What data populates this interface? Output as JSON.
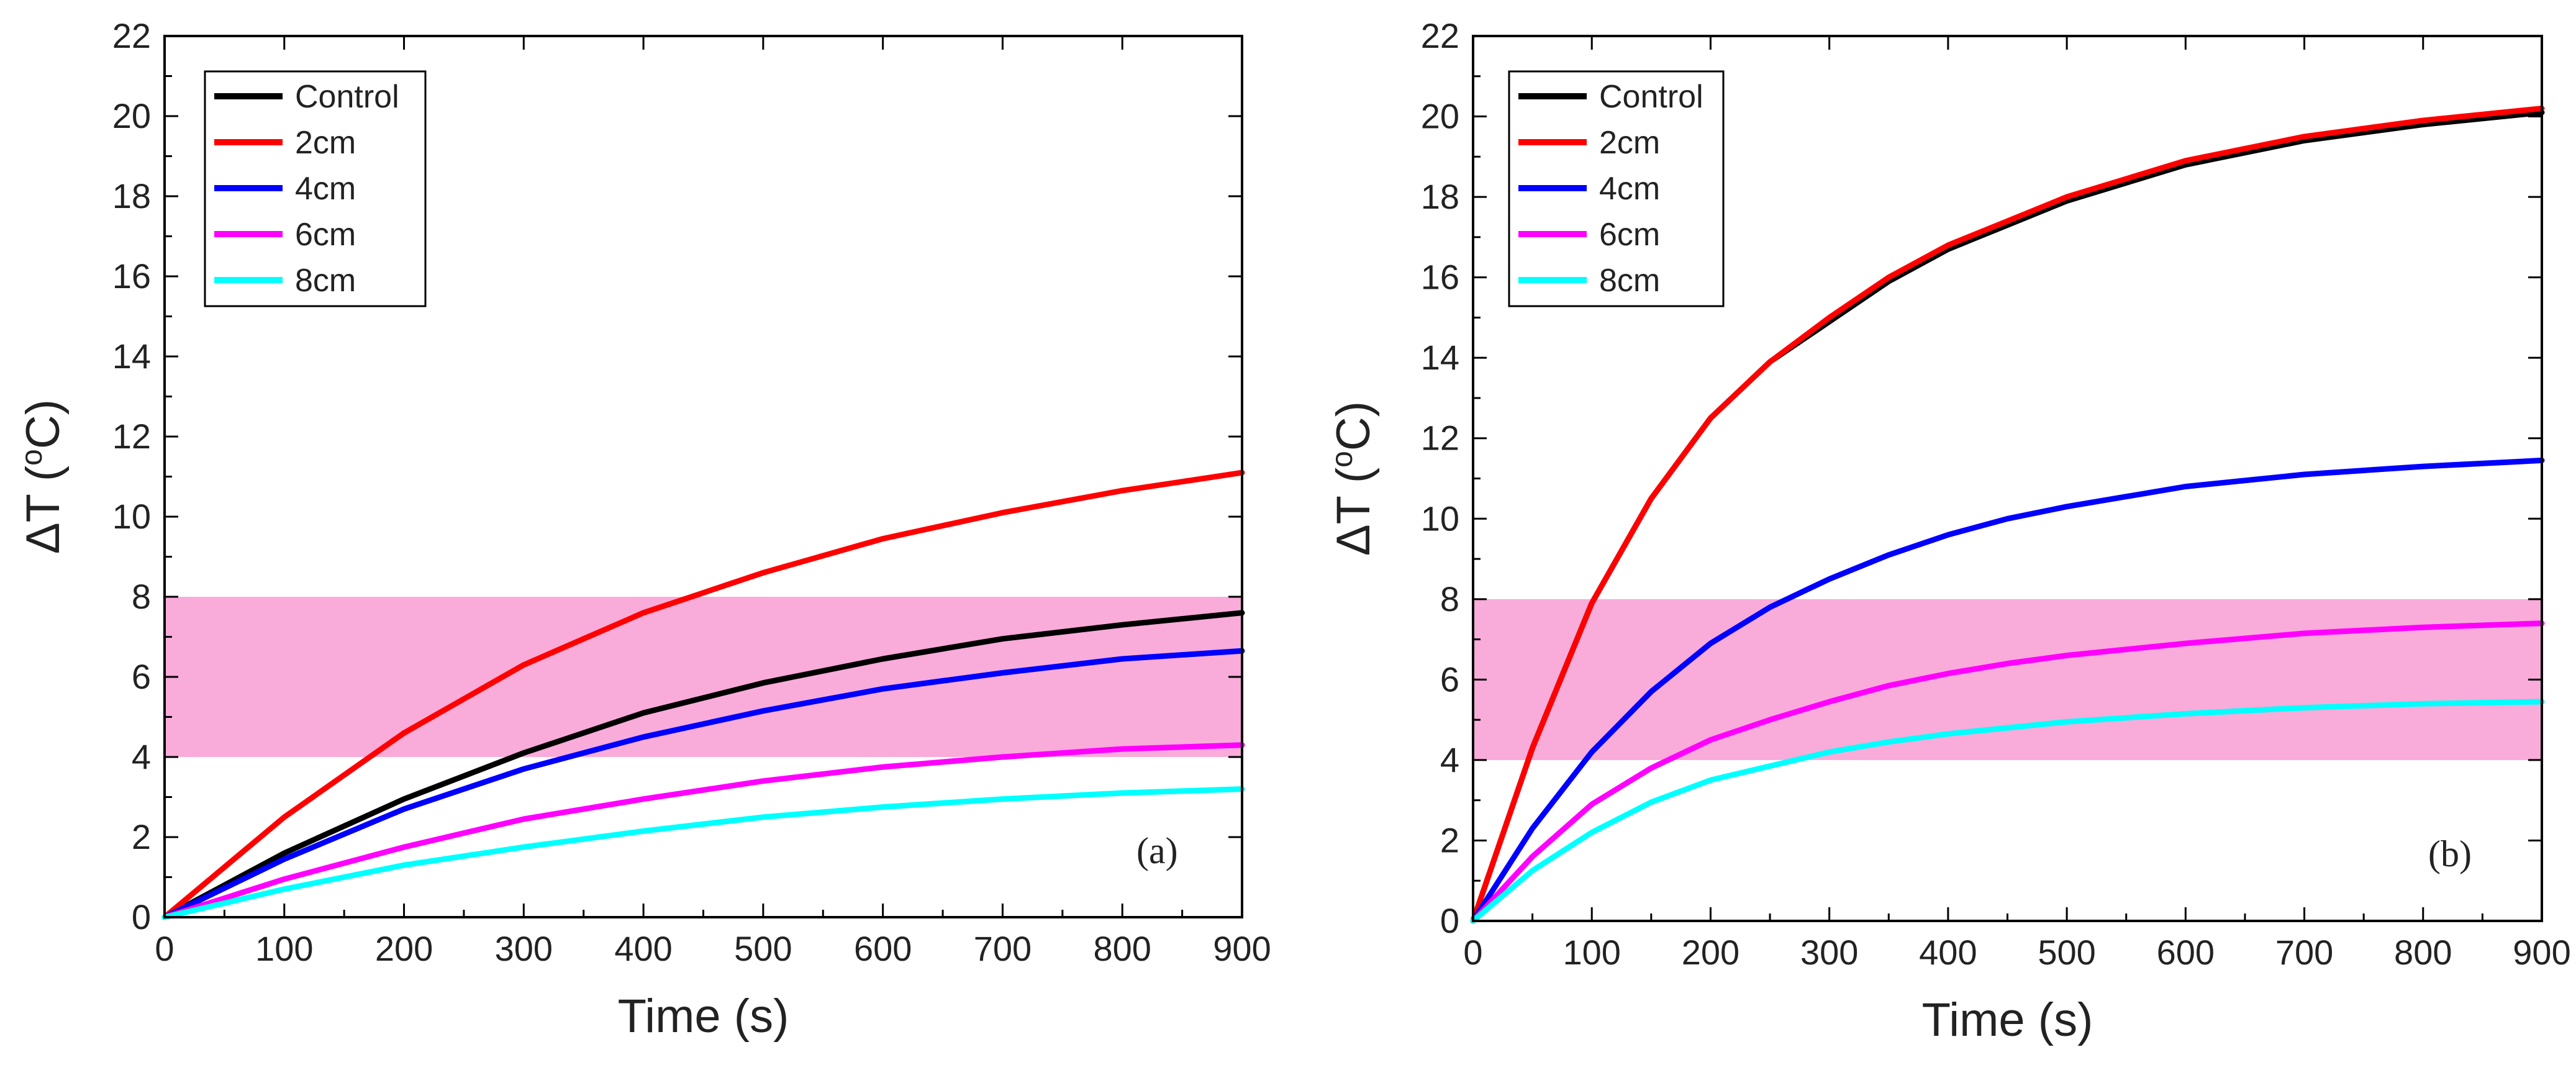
{
  "chart_data": [
    {
      "type": "line",
      "panel_label": "(a)",
      "xlabel": "Time (s)",
      "ylabel_prefix": "ΔT (",
      "ylabel_sup": "o",
      "ylabel_suffix": "C)",
      "xlim": [
        0,
        900
      ],
      "ylim": [
        0,
        22
      ],
      "xticks": [
        0,
        100,
        200,
        300,
        400,
        500,
        600,
        700,
        800,
        900
      ],
      "yticks": [
        0,
        2,
        4,
        6,
        8,
        10,
        12,
        14,
        16,
        18,
        20,
        22
      ],
      "band": {
        "y0": 4,
        "y1": 8,
        "color": "#f9abd9"
      },
      "legend_position": "top-left",
      "x": [
        0,
        100,
        200,
        300,
        400,
        500,
        600,
        700,
        800,
        900
      ],
      "series": [
        {
          "name": "Control",
          "color": "#000000",
          "values": [
            0,
            1.6,
            2.95,
            4.1,
            5.1,
            5.85,
            6.45,
            6.95,
            7.3,
            7.6
          ]
        },
        {
          "name": "2cm",
          "color": "#ff0000",
          "values": [
            0,
            2.5,
            4.6,
            6.3,
            7.6,
            8.6,
            9.45,
            10.1,
            10.65,
            11.1
          ]
        },
        {
          "name": "4cm",
          "color": "#0000ff",
          "values": [
            0,
            1.45,
            2.7,
            3.7,
            4.5,
            5.15,
            5.7,
            6.1,
            6.45,
            6.65
          ]
        },
        {
          "name": "6cm",
          "color": "#ff00ff",
          "values": [
            0,
            0.95,
            1.75,
            2.45,
            2.95,
            3.4,
            3.75,
            4.0,
            4.2,
            4.3
          ]
        },
        {
          "name": "8cm",
          "color": "#00ffff",
          "values": [
            0,
            0.7,
            1.3,
            1.75,
            2.15,
            2.5,
            2.75,
            2.95,
            3.1,
            3.2
          ]
        }
      ]
    },
    {
      "type": "line",
      "panel_label": "(b)",
      "xlabel": "Time (s)",
      "ylabel_prefix": "ΔT (",
      "ylabel_sup": "o",
      "ylabel_suffix": "C)",
      "xlim": [
        0,
        900
      ],
      "ylim": [
        0,
        22
      ],
      "xticks": [
        0,
        100,
        200,
        300,
        400,
        500,
        600,
        700,
        800,
        900
      ],
      "yticks": [
        0,
        2,
        4,
        6,
        8,
        10,
        12,
        14,
        16,
        18,
        20,
        22
      ],
      "band": {
        "y0": 4,
        "y1": 8,
        "color": "#f9abd9"
      },
      "legend_position": "top-left",
      "x": [
        0,
        50,
        100,
        150,
        200,
        250,
        300,
        350,
        400,
        450,
        500,
        600,
        700,
        800,
        900
      ],
      "series": [
        {
          "name": "Control",
          "color": "#000000",
          "values": [
            0,
            4.3,
            7.9,
            10.5,
            12.5,
            13.9,
            14.9,
            15.9,
            16.7,
            17.3,
            17.9,
            18.8,
            19.4,
            19.8,
            20.1
          ]
        },
        {
          "name": "2cm",
          "color": "#ff0000",
          "values": [
            0,
            4.3,
            7.9,
            10.5,
            12.5,
            13.9,
            15.0,
            16.0,
            16.8,
            17.4,
            18.0,
            18.9,
            19.5,
            19.9,
            20.2
          ]
        },
        {
          "name": "4cm",
          "color": "#0000ff",
          "values": [
            0,
            2.3,
            4.2,
            5.7,
            6.9,
            7.8,
            8.5,
            9.1,
            9.6,
            10.0,
            10.3,
            10.8,
            11.1,
            11.3,
            11.45
          ]
        },
        {
          "name": "6cm",
          "color": "#ff00ff",
          "values": [
            0,
            1.6,
            2.9,
            3.8,
            4.5,
            5.0,
            5.45,
            5.85,
            6.15,
            6.4,
            6.6,
            6.9,
            7.15,
            7.3,
            7.4
          ]
        },
        {
          "name": "8cm",
          "color": "#00ffff",
          "values": [
            0,
            1.25,
            2.2,
            2.95,
            3.5,
            3.85,
            4.2,
            4.45,
            4.65,
            4.8,
            4.95,
            5.15,
            5.3,
            5.4,
            5.45
          ]
        }
      ]
    }
  ]
}
